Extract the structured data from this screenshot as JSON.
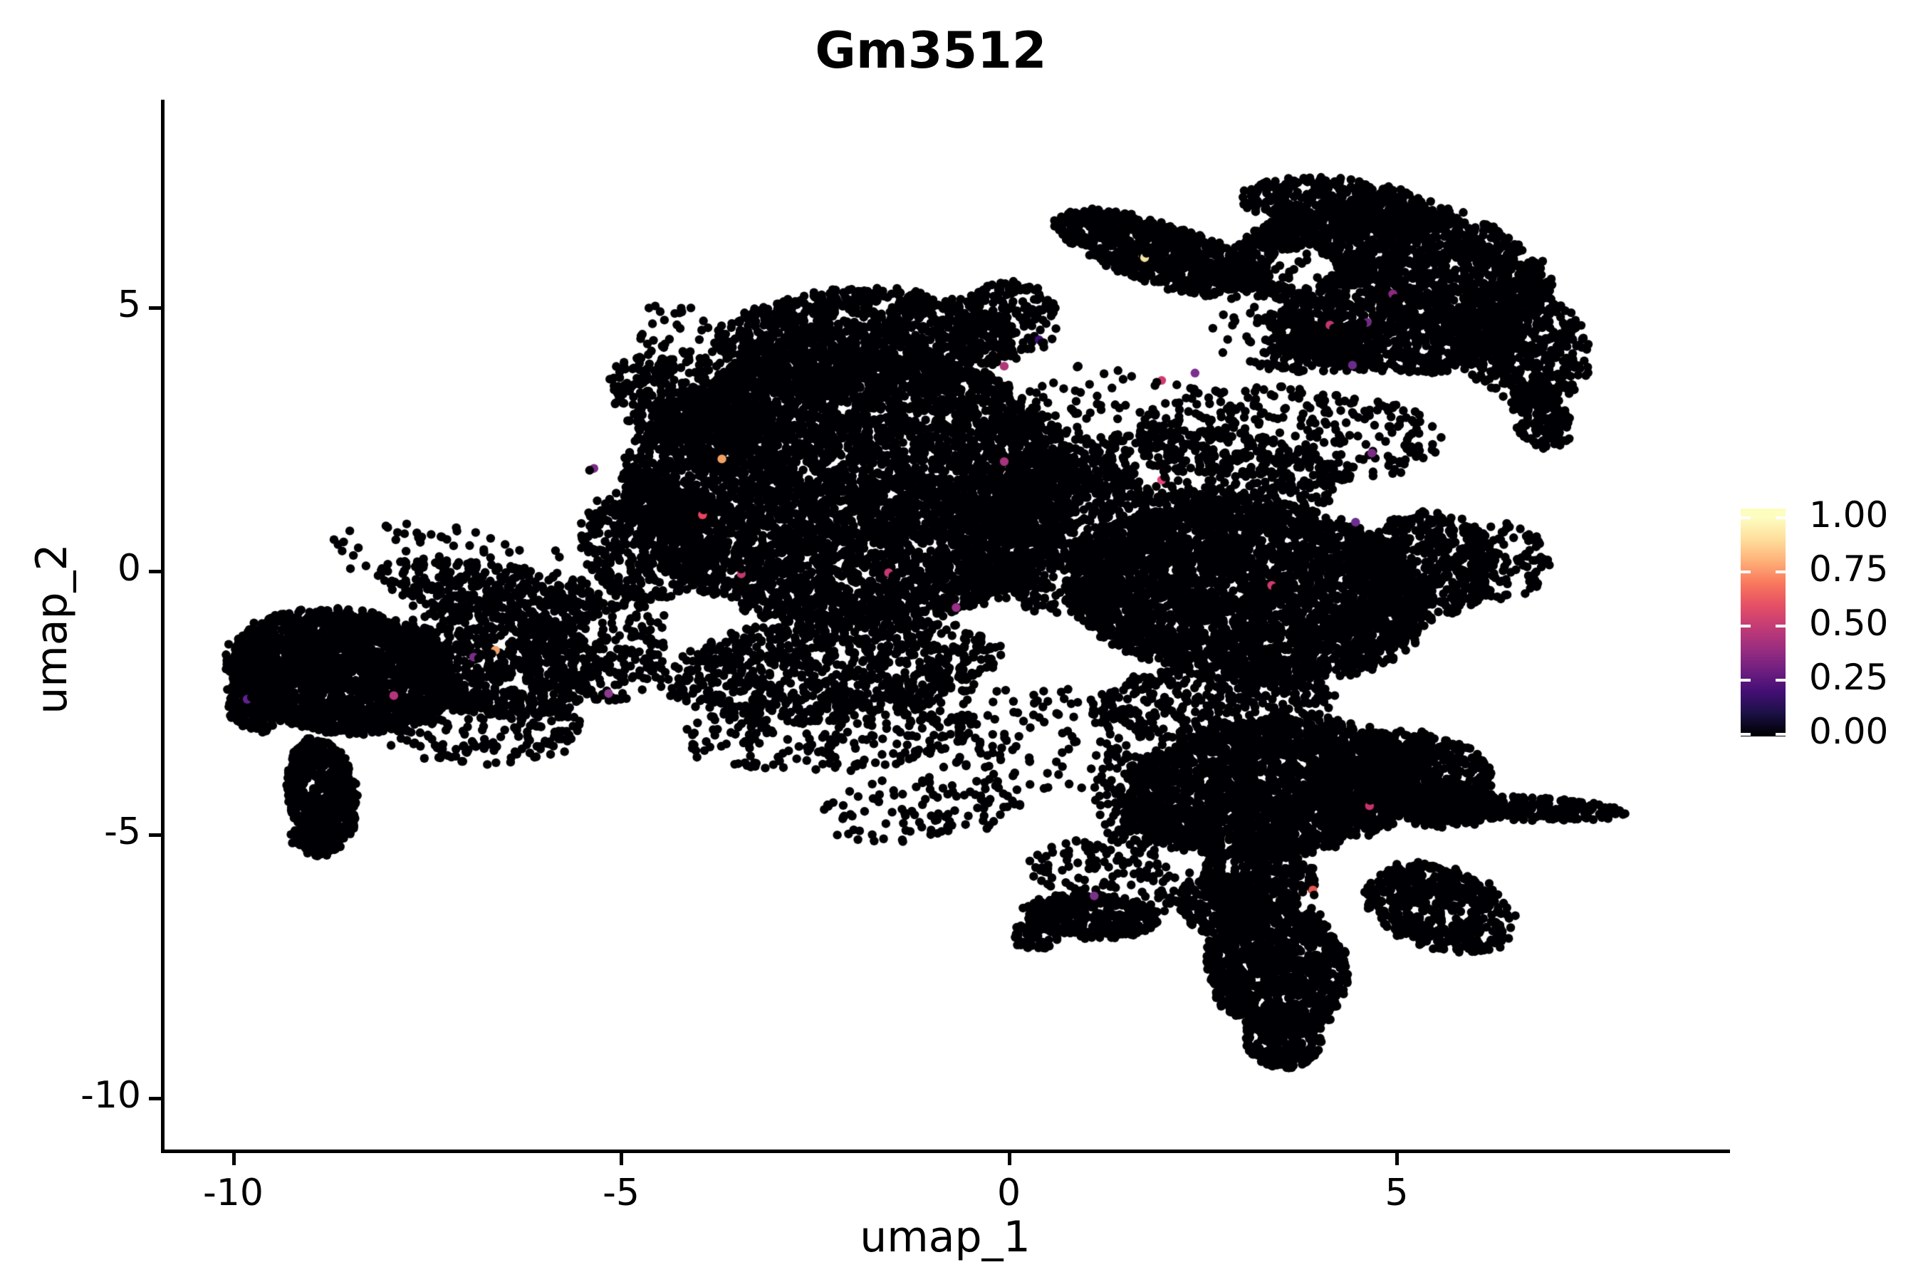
{
  "title": "Gm3512",
  "axes": {
    "x_label": "umap_1",
    "y_label": "umap_2",
    "x_tick_labels": [
      "-10",
      "-5",
      "0",
      "5"
    ],
    "x_tick_values": [
      -10,
      -5,
      0,
      5
    ],
    "y_tick_labels": [
      "5",
      "0",
      "-5",
      "-10"
    ],
    "y_tick_values": [
      5,
      0,
      -5,
      -10
    ]
  },
  "legend": {
    "tick_labels": [
      "1.00",
      "0.75",
      "0.50",
      "0.25",
      "0.00"
    ],
    "tick_values": [
      1.0,
      0.75,
      0.5,
      0.25,
      0.0
    ]
  },
  "colors": {
    "background": "#ffffff",
    "axis": "#000000",
    "text": "#000000",
    "point_base": "#000004",
    "colormap_name": "magma",
    "colormap": [
      [
        0.0,
        "#000004"
      ],
      [
        0.1,
        "#1d1147"
      ],
      [
        0.2,
        "#440f76"
      ],
      [
        0.3,
        "#711f81"
      ],
      [
        0.4,
        "#9c2e7f"
      ],
      [
        0.5,
        "#c43c75"
      ],
      [
        0.6,
        "#e65164"
      ],
      [
        0.7,
        "#f9795d"
      ],
      [
        0.8,
        "#feb078"
      ],
      [
        0.9,
        "#fede9c"
      ],
      [
        1.0,
        "#fcfdbf"
      ]
    ]
  },
  "chart_data": {
    "type": "scatter",
    "title": "Gm3512",
    "xlabel": "umap_1",
    "ylabel": "umap_2",
    "xlim": [
      -10.9,
      9.3
    ],
    "ylim": [
      -11.0,
      8.9
    ],
    "x_ticks": [
      -10,
      -5,
      0,
      5
    ],
    "y_ticks": [
      5,
      0,
      -5,
      -10
    ],
    "legend_range": [
      0.0,
      1.0
    ],
    "grid": false,
    "point_radius_px": 6.2,
    "seed": 42,
    "density_clusters": [
      [
        -8.6,
        -1.9,
        1.5,
        1.15,
        -15,
        2000,
        0
      ],
      [
        -9.65,
        -2.45,
        0.45,
        0.6,
        0,
        250,
        0
      ],
      [
        -8.85,
        -4.25,
        0.45,
        1.1,
        5,
        520,
        0
      ],
      [
        -8.95,
        -5.05,
        0.3,
        0.4,
        0,
        110,
        0
      ],
      [
        -6.6,
        -1.7,
        1.35,
        1.05,
        -20,
        640,
        0
      ],
      [
        -6.8,
        -2.95,
        1.3,
        0.75,
        0,
        200,
        0
      ],
      [
        -6.7,
        -0.4,
        1.5,
        0.55,
        -12,
        260,
        0
      ],
      [
        -5.35,
        -1.3,
        0.95,
        1.2,
        0,
        320,
        0
      ],
      [
        -7.2,
        0.25,
        1.6,
        0.65,
        -8,
        80,
        0
      ],
      [
        -2.0,
        1.6,
        2.95,
        2.6,
        0,
        5200,
        0
      ],
      [
        -1.9,
        4.3,
        1.9,
        1.05,
        4,
        1250,
        0
      ],
      [
        -4.05,
        3.05,
        1.3,
        0.8,
        -40,
        400,
        0
      ],
      [
        -4.65,
        0.6,
        0.9,
        1.15,
        0,
        500,
        0
      ],
      [
        -2.3,
        -1.85,
        2.2,
        1.0,
        8,
        850,
        0
      ],
      [
        -2.3,
        -3.05,
        1.9,
        0.75,
        5,
        240,
        0
      ],
      [
        0.6,
        0.8,
        1.35,
        1.55,
        0,
        850,
        0
      ],
      [
        0.0,
        4.75,
        0.65,
        0.75,
        0,
        220,
        1
      ],
      [
        -3.9,
        4.25,
        1.15,
        0.55,
        -35,
        75,
        0
      ],
      [
        3.1,
        -0.4,
        2.35,
        1.7,
        -12,
        3200,
        0
      ],
      [
        5.35,
        0.1,
        0.95,
        1.0,
        0,
        560,
        0
      ],
      [
        2.6,
        1.9,
        1.75,
        0.8,
        -8,
        400,
        1
      ],
      [
        6.3,
        0.2,
        0.7,
        0.75,
        0,
        120,
        0
      ],
      [
        2.6,
        -2.5,
        1.6,
        0.7,
        5,
        360,
        0
      ],
      [
        2.0,
        6.0,
        1.55,
        0.55,
        -28,
        780,
        1
      ],
      [
        4.9,
        5.4,
        2.1,
        1.6,
        -10,
        2550,
        1
      ],
      [
        4.3,
        6.9,
        1.3,
        0.55,
        -8,
        400,
        1
      ],
      [
        6.6,
        4.3,
        0.85,
        1.2,
        20,
        480,
        1
      ],
      [
        6.85,
        2.95,
        0.38,
        0.65,
        15,
        150,
        1
      ],
      [
        3.4,
        4.35,
        1.25,
        0.5,
        -15,
        280,
        1
      ],
      [
        3.6,
        2.6,
        2.0,
        0.9,
        -5,
        310,
        1
      ],
      [
        1.4,
        3.1,
        1.2,
        0.9,
        0,
        70,
        1
      ],
      [
        3.4,
        -4.1,
        1.95,
        1.3,
        10,
        2350,
        0
      ],
      [
        5.2,
        -3.9,
        1.1,
        0.85,
        -20,
        650,
        0
      ],
      [
        5.6,
        -4.45,
        0.75,
        0.4,
        -5,
        210,
        0
      ],
      [
        6.6,
        -4.5,
        1.35,
        0.23,
        -4,
        280,
        0
      ],
      [
        5.55,
        -6.4,
        1.05,
        0.75,
        -35,
        520,
        0
      ],
      [
        3.45,
        -7.5,
        0.9,
        1.3,
        8,
        1050,
        0
      ],
      [
        3.55,
        -8.85,
        0.5,
        0.6,
        5,
        240,
        0
      ],
      [
        2.7,
        -6.35,
        0.5,
        0.6,
        30,
        190,
        0
      ],
      [
        3.2,
        -5.85,
        0.75,
        0.65,
        0,
        320,
        0
      ],
      [
        1.6,
        -4.4,
        0.5,
        1.0,
        10,
        130,
        0
      ],
      [
        1.05,
        -6.55,
        0.88,
        0.42,
        -5,
        370,
        0
      ],
      [
        0.35,
        -6.9,
        0.3,
        0.3,
        0,
        65,
        0
      ],
      [
        1.1,
        -5.6,
        0.9,
        0.5,
        0,
        85,
        0
      ],
      [
        2.05,
        -6.0,
        0.4,
        0.5,
        0,
        40,
        0
      ],
      [
        -1.1,
        -4.5,
        1.35,
        0.65,
        10,
        105,
        0
      ],
      [
        0.3,
        -3.2,
        1.4,
        1.0,
        0,
        115,
        0
      ]
    ],
    "holes": [
      [
        1.9,
        4.45,
        1.5,
        0.68
      ],
      [
        3.75,
        5.75,
        0.42,
        0.38
      ],
      [
        3.0,
        5.05,
        0.45,
        0.3
      ]
    ],
    "colored_points": [
      [
        -9.82,
        -2.43,
        "#5f2190",
        [
          0.7,
          -0.3
        ]
      ],
      [
        -7.93,
        -2.36,
        "#b5357c",
        0
      ],
      [
        -6.62,
        -1.5,
        "#f2a46b",
        [
          -0.6,
          0.6
        ]
      ],
      [
        -6.9,
        -1.63,
        "#7a2d88",
        [
          0.8,
          0.2
        ]
      ],
      [
        -5.35,
        1.95,
        "#7a2d88",
        [
          -0.7,
          0.3
        ]
      ],
      [
        -5.16,
        -2.32,
        "#8c3a8f",
        0
      ],
      [
        -3.7,
        2.13,
        "#f2a163",
        0
      ],
      [
        -3.95,
        1.07,
        "#e8435e",
        [
          0.2,
          -0.8
        ]
      ],
      [
        -3.45,
        -0.05,
        "#c13a70",
        [
          0,
          -0.8
        ]
      ],
      [
        -1.55,
        -0.03,
        "#c33972",
        [
          0.7,
          0.5
        ]
      ],
      [
        -0.68,
        -0.69,
        "#9a3087",
        0
      ],
      [
        -0.06,
        3.89,
        "#b03778",
        0
      ],
      [
        0.39,
        4.39,
        "#3c0f70",
        [
          0.5,
          0.5
        ]
      ],
      [
        1.97,
        3.62,
        "#d23a6e",
        [
          -0.8,
          0.3
        ]
      ],
      [
        1.75,
        5.95,
        "#f2e3a0",
        [
          0.3,
          -0.7
        ]
      ],
      [
        2.4,
        3.76,
        "#7c2f8e",
        0
      ],
      [
        3.39,
        -0.27,
        "#d23a6e",
        [
          0.6,
          0.4
        ]
      ],
      [
        1.97,
        1.73,
        "#e8437e",
        [
          0.5,
          -0.5
        ]
      ],
      [
        4.14,
        4.67,
        "#c0396f",
        [
          0.6,
          0.5
        ]
      ],
      [
        4.62,
        4.72,
        "#702a85",
        [
          -0.75,
          0.2
        ]
      ],
      [
        4.43,
        3.91,
        "#6a2c8a",
        0
      ],
      [
        4.95,
        5.26,
        "#8c2981",
        [
          0.4,
          0.7
        ]
      ],
      [
        4.68,
        2.24,
        "#7b2d86",
        0
      ],
      [
        4.47,
        0.93,
        "#6b2f8c",
        0
      ],
      [
        4.65,
        -4.45,
        "#c7336b",
        [
          0.1,
          -0.85
        ]
      ],
      [
        3.92,
        -6.05,
        "#e8584e",
        [
          0.2,
          0.8
        ]
      ],
      [
        1.1,
        -6.16,
        "#7a3189",
        0
      ],
      [
        -0.06,
        2.08,
        "#a8327d",
        0
      ]
    ]
  }
}
